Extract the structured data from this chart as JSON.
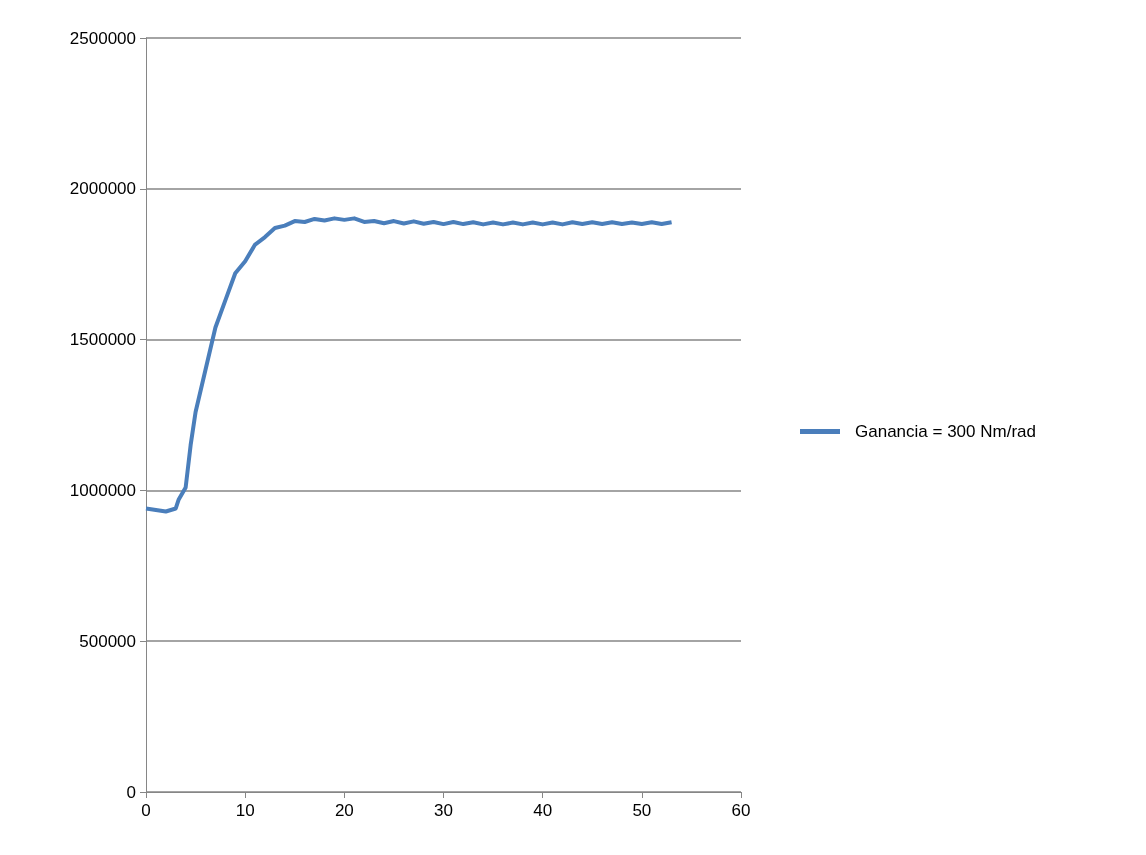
{
  "chart_data": {
    "type": "line",
    "xlim": [
      0,
      60
    ],
    "xticks": [
      0,
      10,
      20,
      30,
      40,
      50,
      60
    ],
    "ylim": [
      0,
      2500000
    ],
    "yticks": [
      0,
      500000,
      1000000,
      1500000,
      2000000,
      2500000
    ],
    "grid": "y",
    "legend": "right",
    "marker": "none",
    "series": [
      {
        "name": "Ganancia = 300 Nm/rad",
        "color": "#4a7ebb",
        "x": [
          0,
          1,
          2,
          3,
          3.3,
          4,
          4.5,
          5,
          6,
          7,
          8,
          9,
          10,
          11,
          12,
          13,
          14,
          15,
          16,
          17,
          18,
          19,
          20,
          21,
          22,
          23,
          24,
          25,
          26,
          27,
          28,
          29,
          30,
          31,
          32,
          33,
          34,
          35,
          36,
          37,
          38,
          39,
          40,
          41,
          42,
          43,
          44,
          45,
          46,
          47,
          48,
          49,
          50,
          51,
          52,
          53
        ],
        "values": [
          940000,
          935000,
          930000,
          940000,
          970000,
          1010000,
          1150000,
          1260000,
          1400000,
          1540000,
          1630000,
          1720000,
          1760000,
          1815000,
          1840000,
          1870000,
          1878000,
          1893000,
          1890000,
          1900000,
          1895000,
          1902000,
          1897000,
          1902000,
          1890000,
          1893000,
          1886000,
          1893000,
          1885000,
          1892000,
          1884000,
          1890000,
          1883000,
          1890000,
          1883000,
          1889000,
          1882000,
          1888000,
          1882000,
          1888000,
          1882000,
          1888000,
          1882000,
          1888000,
          1882000,
          1889000,
          1883000,
          1889000,
          1883000,
          1889000,
          1883000,
          1888000,
          1883000,
          1889000,
          1883000,
          1889000
        ]
      }
    ]
  }
}
